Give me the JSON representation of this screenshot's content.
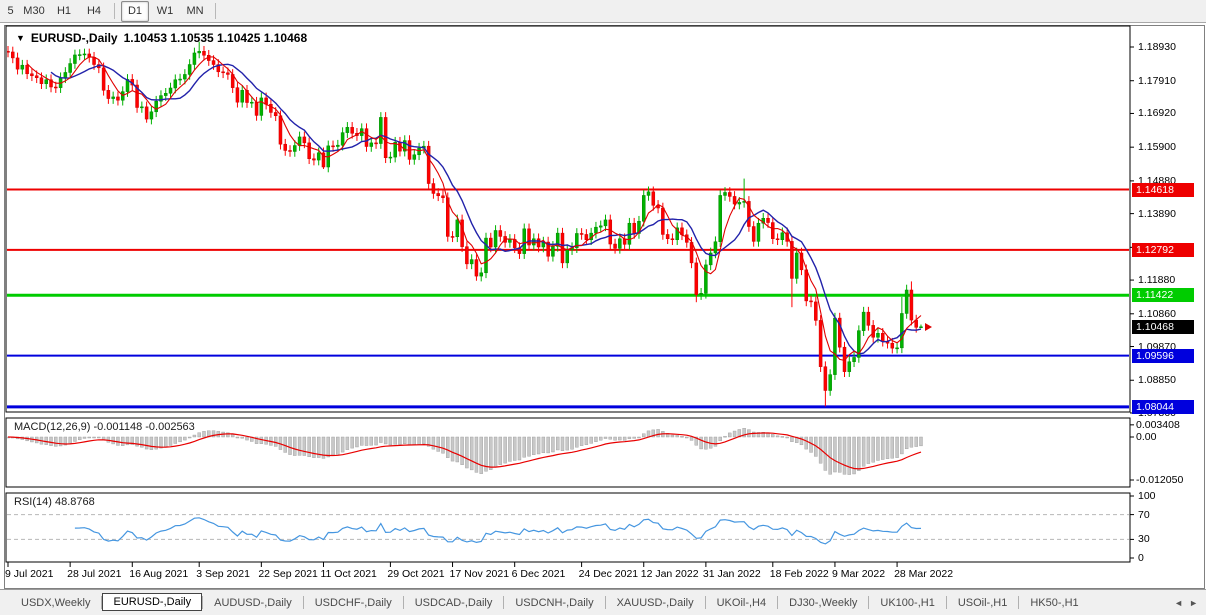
{
  "window": {
    "title_symbol": "EURUSD-,Daily",
    "title_ohlc": "1.10453 1.10535 1.10425 1.10468"
  },
  "toolbar": {
    "timeframes": [
      "5",
      "M30",
      "H1",
      "H4",
      "D1",
      "W1",
      "MN"
    ],
    "active": "D1"
  },
  "price_axis": {
    "ticks": [
      "1.18930",
      "1.17910",
      "1.16920",
      "1.15900",
      "1.14880",
      "1.13890",
      "1.12870",
      "1.11880",
      "1.10860",
      "1.09870",
      "1.08850",
      "1.07860"
    ]
  },
  "levels": [
    {
      "price": 1.14618,
      "label": "1.14618",
      "color": "#ee0000",
      "width": 2
    },
    {
      "price": 1.12792,
      "label": "1.12792",
      "color": "#ee0000",
      "width": 2
    },
    {
      "price": 1.11422,
      "label": "1.11422",
      "color": "#00cc00",
      "width": 3
    },
    {
      "price": 1.09596,
      "label": "1.09596",
      "color": "#0000dd",
      "width": 2
    },
    {
      "price": 1.08044,
      "label": "1.08044",
      "color": "#0000dd",
      "width": 3
    }
  ],
  "current_price": {
    "value": 1.10468,
    "label": "1.10468",
    "bg": "#000000"
  },
  "date_axis": {
    "labels": [
      "9 Jul 2021",
      "28 Jul 2021",
      "16 Aug 2021",
      "3 Sep 2021",
      "22 Sep 2021",
      "11 Oct 2021",
      "29 Oct 2021",
      "17 Nov 2021",
      "6 Dec 2021",
      "24 Dec 2021",
      "12 Jan 2022",
      "31 Jan 2022",
      "18 Feb 2022",
      "9 Mar 2022",
      "28 Mar 2022"
    ],
    "indices": [
      0,
      13,
      26,
      40,
      53,
      66,
      80,
      93,
      106,
      120,
      133,
      146,
      160,
      173,
      186
    ]
  },
  "chart_data": {
    "type": "candlestick",
    "symbol": "EURUSD",
    "timeframe": "Daily",
    "first_open": 1.188,
    "closes": [
      1.1878,
      1.186,
      1.1826,
      1.1838,
      1.1812,
      1.1806,
      1.18,
      1.1782,
      1.1794,
      1.1772,
      1.177,
      1.18,
      1.1816,
      1.1843,
      1.1869,
      1.187,
      1.1872,
      1.1862,
      1.184,
      1.183,
      1.1762,
      1.1737,
      1.1742,
      1.1732,
      1.1758,
      1.1795,
      1.1778,
      1.171,
      1.1712,
      1.1675,
      1.1697,
      1.1729,
      1.1746,
      1.1753,
      1.1769,
      1.1794,
      1.1796,
      1.181,
      1.184,
      1.1875,
      1.188,
      1.1868,
      1.1852,
      1.184,
      1.1818,
      1.1815,
      1.181,
      1.177,
      1.1726,
      1.1762,
      1.1725,
      1.1726,
      1.1686,
      1.1739,
      1.172,
      1.1695,
      1.1685,
      1.1599,
      1.158,
      1.1577,
      1.1595,
      1.1621,
      1.1603,
      1.1555,
      1.1551,
      1.1573,
      1.153,
      1.1594,
      1.1592,
      1.1596,
      1.1634,
      1.165,
      1.1632,
      1.1625,
      1.1646,
      1.1592,
      1.1603,
      1.1601,
      1.168,
      1.1558,
      1.156,
      1.1605,
      1.1578,
      1.161,
      1.1553,
      1.1567,
      1.1587,
      1.1593,
      1.148,
      1.145,
      1.1443,
      1.1437,
      1.132,
      1.1319,
      1.137,
      1.1289,
      1.1237,
      1.125,
      1.12,
      1.121,
      1.1315,
      1.1288,
      1.1338,
      1.132,
      1.1302,
      1.1311,
      1.1286,
      1.1268,
      1.1343,
      1.1294,
      1.1313,
      1.1288,
      1.1303,
      1.126,
      1.129,
      1.133,
      1.124,
      1.128,
      1.1286,
      1.1329,
      1.1326,
      1.131,
      1.133,
      1.1348,
      1.1352,
      1.137,
      1.1297,
      1.1284,
      1.1313,
      1.1296,
      1.136,
      1.1329,
      1.1366,
      1.1444,
      1.1455,
      1.1414,
      1.1406,
      1.1326,
      1.1313,
      1.131,
      1.1346,
      1.1325,
      1.1302,
      1.124,
      1.1144,
      1.1148,
      1.1234,
      1.127,
      1.1304,
      1.1444,
      1.1453,
      1.1441,
      1.1418,
      1.1423,
      1.1426,
      1.135,
      1.1305,
      1.136,
      1.1375,
      1.1362,
      1.1313,
      1.131,
      1.1331,
      1.1305,
      1.1193,
      1.127,
      1.1219,
      1.1125,
      1.1122,
      1.1066,
      1.0926,
      1.0854,
      1.0902,
      1.1073,
      1.0985,
      1.0911,
      1.0941,
      1.0954,
      1.1035,
      1.1091,
      1.1051,
      1.1015,
      1.1027,
      1.1003,
      1.0997,
      1.0982,
      1.0983,
      1.1087,
      1.1158,
      1.1067,
      1.1045,
      1.1047
    ],
    "spikes": [
      [
        29,
        null,
        1.1664
      ],
      [
        40,
        1.1909,
        null
      ],
      [
        66,
        null,
        1.1524
      ],
      [
        98,
        null,
        1.1186
      ],
      [
        144,
        null,
        1.1121
      ],
      [
        154,
        1.1495,
        null
      ],
      [
        164,
        null,
        1.1106
      ],
      [
        171,
        null,
        1.0806
      ],
      [
        187,
        1.1137,
        null
      ],
      [
        189,
        1.1184,
        null
      ]
    ],
    "last_candle": [
      1.10453,
      1.10535,
      1.10425,
      1.10468
    ]
  },
  "ma": {
    "fast": {
      "period": 5,
      "color": "#e00000"
    },
    "slow": {
      "period": 10,
      "color": "#2222aa"
    }
  },
  "macd": {
    "label": "MACD(12,26,9) -0.001148 -0.002563",
    "fast": 12,
    "slow": 26,
    "signal": 9,
    "main_value": -0.001148,
    "signal_value": -0.002563,
    "axis_top": "0.003408",
    "axis_zero": "0.00",
    "axis_bottom": "-0.012050",
    "hist_color": "#c8c8c8",
    "hist_stroke": "#9a9a9a",
    "signal_color": "#e80000"
  },
  "rsi": {
    "label": "RSI(14) 48.8768",
    "period": 14,
    "value": 48.8768,
    "axis": [
      "100",
      "70",
      "30",
      "0"
    ],
    "level_values": [
      70,
      30
    ],
    "color": "#4596e0"
  },
  "tabs": {
    "items": [
      "USDX,Weekly",
      "EURUSD-,Daily",
      "AUDUSD-,Daily",
      "USDCHF-,Daily",
      "USDCAD-,Daily",
      "USDCNH-,Daily",
      "XAUUSD-,Daily",
      "UKOil-,H4",
      "DJ30-,Weekly",
      "UK100-,H1",
      "USOil-,H1",
      "HK50-,H1"
    ],
    "active_index": 1
  },
  "colors": {
    "bull": "#00b300",
    "bull_stroke": "#008800",
    "bear": "#ff0000",
    "bear_stroke": "#cc0000",
    "panel_border": "#000000",
    "rsi_level_dash": "#b8b8b8"
  }
}
